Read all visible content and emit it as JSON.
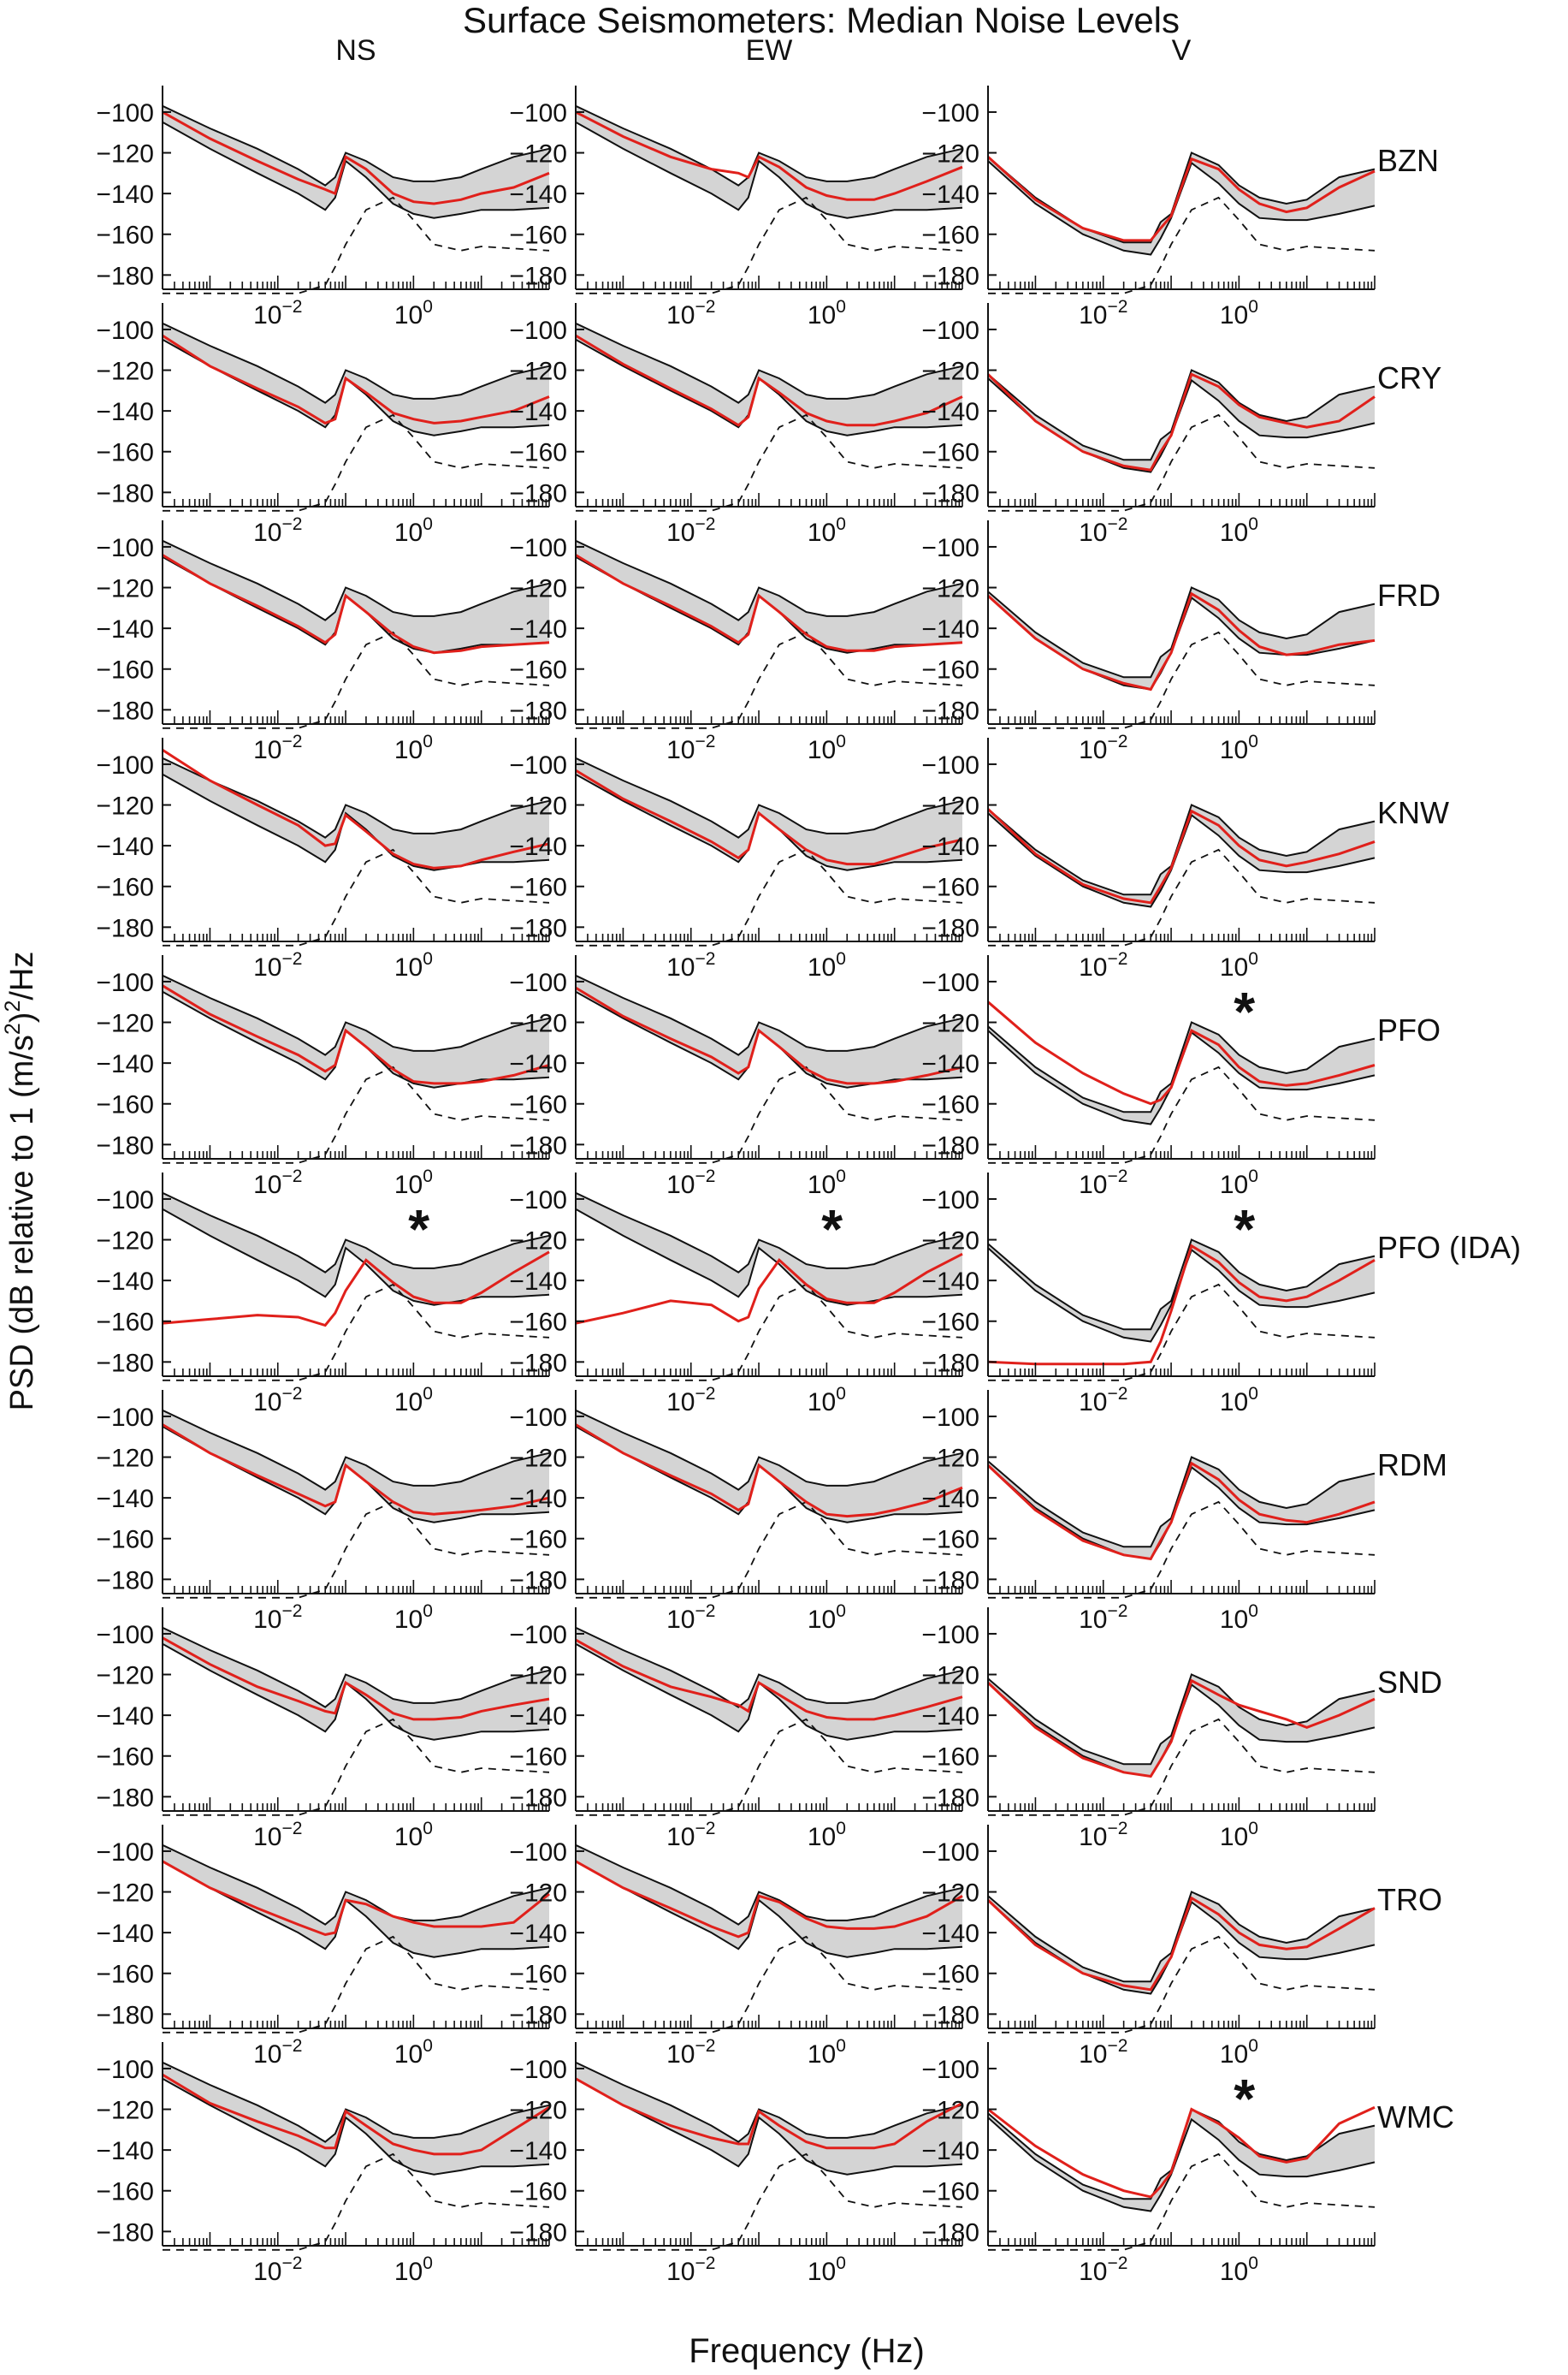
{
  "chart_data": {
    "type": "line",
    "title": "Surface Seismometers: Median Noise Levels",
    "xlabel": "Frequency (Hz)",
    "ylabel_parts": {
      "pre": "PSD (dB relative to 1 (m/s",
      "sup": "2",
      "post": ")",
      "sup2": "2",
      "tail": "/Hz"
    },
    "x_scale": "log",
    "xlim": [
      0.0002,
      100
    ],
    "ylim": [
      -187,
      -87
    ],
    "yticks": [
      -100,
      -120,
      -140,
      -160,
      -180
    ],
    "x_tick_labels": [
      {
        "value": 0.01,
        "base": "10",
        "exp": "-2"
      },
      {
        "value": 1,
        "base": "10",
        "exp": "0"
      }
    ],
    "columns": [
      "NS",
      "EW",
      "V"
    ],
    "stations": [
      "BZN",
      "CRY",
      "FRD",
      "KNW",
      "PFO",
      "PFO (IDA)",
      "RDM",
      "SND",
      "TRO",
      "WMC"
    ],
    "frequencies_hz": [
      0.0002,
      0.001,
      0.005,
      0.02,
      0.05,
      0.07,
      0.1,
      0.2,
      0.5,
      1,
      2,
      5,
      10,
      30,
      100
    ],
    "envelope_horizontal": {
      "lower": [
        -105,
        -118,
        -130,
        -140,
        -148,
        -142,
        -124,
        -132,
        -145,
        -150,
        -152,
        -150,
        -148,
        -148,
        -147
      ],
      "upper": [
        -97,
        -108,
        -118,
        -128,
        -136,
        -132,
        -120,
        -124,
        -132,
        -134,
        -134,
        -132,
        -128,
        -122,
        -118
      ]
    },
    "envelope_vertical": {
      "lower": [
        -124,
        -145,
        -160,
        -168,
        -170,
        -162,
        -152,
        -125,
        -135,
        -145,
        -152,
        -153,
        -153,
        -150,
        -146
      ],
      "upper": [
        -122,
        -142,
        -157,
        -164,
        -164,
        -154,
        -150,
        -120,
        -126,
        -136,
        -142,
        -145,
        -143,
        -132,
        -128
      ]
    },
    "low_noise_reference": [
      -190,
      -190,
      -190,
      -190,
      -185,
      -176,
      -165,
      -148,
      -142,
      -153,
      -165,
      -168,
      -166,
      -167,
      -168
    ],
    "medians": [
      {
        "station": "BZN",
        "NS": [
          -100,
          -113,
          -124,
          -133,
          -138,
          -140,
          -122,
          -128,
          -140,
          -144,
          -145,
          -143,
          -140,
          -137,
          -130
        ],
        "EW": [
          -100,
          -112,
          -122,
          -128,
          -130,
          -132,
          -122,
          -127,
          -137,
          -141,
          -143,
          -143,
          -140,
          -134,
          -127
        ],
        "V": [
          -122,
          -143,
          -157,
          -163,
          -163,
          -157,
          -151,
          -123,
          -128,
          -138,
          -145,
          -149,
          -147,
          -137,
          -129
        ]
      },
      {
        "station": "CRY",
        "NS": [
          -103,
          -118,
          -129,
          -138,
          -146,
          -144,
          -124,
          -131,
          -141,
          -144,
          -146,
          -145,
          -143,
          -140,
          -133
        ],
        "EW": [
          -103,
          -117,
          -129,
          -139,
          -147,
          -143,
          -124,
          -131,
          -141,
          -145,
          -147,
          -147,
          -145,
          -141,
          -133
        ],
        "V": [
          -122,
          -145,
          -160,
          -167,
          -169,
          -160,
          -152,
          -122,
          -128,
          -137,
          -143,
          -146,
          -148,
          -145,
          -133
        ]
      },
      {
        "station": "FRD",
        "NS": [
          -104,
          -118,
          -129,
          -139,
          -147,
          -143,
          -124,
          -132,
          -143,
          -149,
          -152,
          -151,
          -149,
          -148,
          -147
        ],
        "EW": [
          -104,
          -118,
          -129,
          -139,
          -147,
          -143,
          -124,
          -132,
          -143,
          -149,
          -151,
          -151,
          -149,
          -148,
          -147
        ],
        "V": [
          -124,
          -145,
          -160,
          -167,
          -170,
          -161,
          -152,
          -123,
          -131,
          -141,
          -149,
          -153,
          -152,
          -148,
          -146
        ]
      },
      {
        "station": "KNW",
        "NS": [
          -93,
          -108,
          -120,
          -130,
          -140,
          -139,
          -125,
          -133,
          -144,
          -149,
          -151,
          -150,
          -147,
          -143,
          -139
        ],
        "EW": [
          -103,
          -117,
          -128,
          -138,
          -146,
          -142,
          -124,
          -132,
          -142,
          -147,
          -149,
          -149,
          -146,
          -141,
          -137
        ],
        "V": [
          -122,
          -144,
          -159,
          -166,
          -168,
          -160,
          -151,
          -123,
          -130,
          -140,
          -147,
          -150,
          -148,
          -144,
          -138
        ]
      },
      {
        "station": "PFO",
        "NS": [
          -102,
          -116,
          -127,
          -136,
          -144,
          -141,
          -124,
          -132,
          -143,
          -149,
          -150,
          -150,
          -149,
          -146,
          -141
        ],
        "EW": [
          -103,
          -117,
          -128,
          -137,
          -145,
          -142,
          -124,
          -132,
          -143,
          -148,
          -150,
          -150,
          -149,
          -146,
          -142
        ],
        "V": [
          -110,
          -130,
          -145,
          -155,
          -160,
          -158,
          -152,
          -124,
          -131,
          -142,
          -149,
          -151,
          -150,
          -146,
          -141
        ]
      },
      {
        "station": "PFO (IDA)",
        "NS": [
          -161,
          -159,
          -157,
          -158,
          -162,
          -156,
          -145,
          -130,
          -141,
          -148,
          -151,
          -151,
          -146,
          -136,
          -126
        ],
        "EW": [
          -161,
          -156,
          -150,
          -152,
          -160,
          -158,
          -144,
          -130,
          -142,
          -149,
          -151,
          -151,
          -146,
          -136,
          -127
        ],
        "V": [
          -180,
          -181,
          -181,
          -181,
          -180,
          -170,
          -155,
          -123,
          -131,
          -141,
          -148,
          -150,
          -148,
          -140,
          -130
        ]
      },
      {
        "station": "RDM",
        "NS": [
          -104,
          -118,
          -129,
          -138,
          -144,
          -142,
          -124,
          -132,
          -142,
          -147,
          -148,
          -147,
          -146,
          -144,
          -140
        ],
        "EW": [
          -104,
          -118,
          -129,
          -138,
          -146,
          -143,
          -124,
          -132,
          -142,
          -148,
          -149,
          -148,
          -146,
          -142,
          -135
        ],
        "V": [
          -124,
          -146,
          -161,
          -168,
          -170,
          -161,
          -152,
          -123,
          -131,
          -141,
          -148,
          -151,
          -152,
          -148,
          -142
        ]
      },
      {
        "station": "SND",
        "NS": [
          -102,
          -115,
          -126,
          -133,
          -138,
          -139,
          -124,
          -130,
          -139,
          -142,
          -142,
          -141,
          -138,
          -135,
          -132
        ],
        "EW": [
          -103,
          -116,
          -126,
          -131,
          -135,
          -138,
          -124,
          -130,
          -138,
          -141,
          -142,
          -142,
          -140,
          -136,
          -131
        ],
        "V": [
          -124,
          -146,
          -161,
          -168,
          -170,
          -162,
          -153,
          -123,
          -130,
          -135,
          -138,
          -142,
          -146,
          -140,
          -132
        ]
      },
      {
        "station": "TRO",
        "NS": [
          -105,
          -118,
          -128,
          -136,
          -141,
          -140,
          -124,
          -126,
          -132,
          -135,
          -137,
          -137,
          -137,
          -135,
          -121
        ],
        "EW": [
          -105,
          -118,
          -128,
          -137,
          -142,
          -140,
          -122,
          -125,
          -133,
          -137,
          -138,
          -138,
          -137,
          -132,
          -122
        ],
        "V": [
          -124,
          -146,
          -160,
          -166,
          -168,
          -160,
          -152,
          -123,
          -131,
          -140,
          -146,
          -148,
          -147,
          -138,
          -128
        ]
      },
      {
        "station": "WMC",
        "NS": [
          -103,
          -117,
          -126,
          -133,
          -139,
          -139,
          -121,
          -128,
          -137,
          -140,
          -142,
          -142,
          -140,
          -130,
          -119
        ],
        "EW": [
          -105,
          -118,
          -128,
          -134,
          -137,
          -137,
          -121,
          -128,
          -136,
          -139,
          -139,
          -139,
          -137,
          -126,
          -117
        ],
        "V": [
          -120,
          -138,
          -152,
          -160,
          -163,
          -158,
          -151,
          -120,
          -127,
          -134,
          -143,
          -146,
          -144,
          -127,
          -119
        ]
      }
    ],
    "asterisk_marks": [
      {
        "station": "PFO",
        "column": "V",
        "symbol": "*"
      },
      {
        "station": "PFO (IDA)",
        "column": "NS",
        "symbol": "*"
      },
      {
        "station": "PFO (IDA)",
        "column": "EW",
        "symbol": "*"
      },
      {
        "station": "PFO (IDA)",
        "column": "V",
        "symbol": "*"
      },
      {
        "station": "WMC",
        "column": "V",
        "symbol": "*"
      }
    ],
    "colors": {
      "median": "#e0201b",
      "envelope_fill": "#d4d4d4",
      "envelope_line": "#111111",
      "reference": "#111111"
    }
  }
}
